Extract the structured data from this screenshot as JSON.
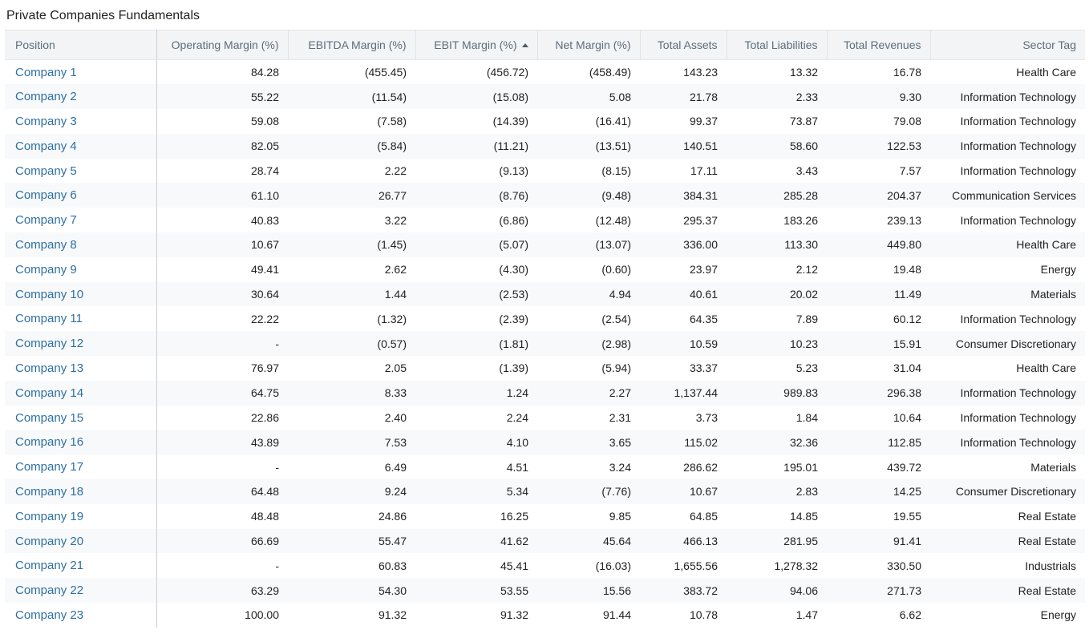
{
  "title": "Private Companies Fundamentals",
  "columns": {
    "position": "Position",
    "operating_margin": "Operating Margin (%)",
    "ebitda_margin": "EBITDA Margin (%)",
    "ebit_margin": "EBIT Margin (%)",
    "net_margin": "Net Margin (%)",
    "total_assets": "Total Assets",
    "total_liabilities": "Total Liabilities",
    "total_revenues": "Total Revenues",
    "sector_tag": "Sector Tag"
  },
  "sort": {
    "column": "ebit_margin",
    "direction": "ascending",
    "icon": "sort-ascending-icon"
  },
  "rows": [
    {
      "position": "Company 1",
      "operating_margin": "84.28",
      "ebitda_margin": "(455.45)",
      "ebit_margin": "(456.72)",
      "net_margin": "(458.49)",
      "total_assets": "143.23",
      "total_liabilities": "13.32",
      "total_revenues": "16.78",
      "sector_tag": "Health Care"
    },
    {
      "position": "Company 2",
      "operating_margin": "55.22",
      "ebitda_margin": "(11.54)",
      "ebit_margin": "(15.08)",
      "net_margin": "5.08",
      "total_assets": "21.78",
      "total_liabilities": "2.33",
      "total_revenues": "9.30",
      "sector_tag": "Information Technology"
    },
    {
      "position": "Company 3",
      "operating_margin": "59.08",
      "ebitda_margin": "(7.58)",
      "ebit_margin": "(14.39)",
      "net_margin": "(16.41)",
      "total_assets": "99.37",
      "total_liabilities": "73.87",
      "total_revenues": "79.08",
      "sector_tag": "Information Technology"
    },
    {
      "position": "Company 4",
      "operating_margin": "82.05",
      "ebitda_margin": "(5.84)",
      "ebit_margin": "(11.21)",
      "net_margin": "(13.51)",
      "total_assets": "140.51",
      "total_liabilities": "58.60",
      "total_revenues": "122.53",
      "sector_tag": "Information Technology"
    },
    {
      "position": "Company 5",
      "operating_margin": "28.74",
      "ebitda_margin": "2.22",
      "ebit_margin": "(9.13)",
      "net_margin": "(8.15)",
      "total_assets": "17.11",
      "total_liabilities": "3.43",
      "total_revenues": "7.57",
      "sector_tag": "Information Technology"
    },
    {
      "position": "Company 6",
      "operating_margin": "61.10",
      "ebitda_margin": "26.77",
      "ebit_margin": "(8.76)",
      "net_margin": "(9.48)",
      "total_assets": "384.31",
      "total_liabilities": "285.28",
      "total_revenues": "204.37",
      "sector_tag": "Communication Services"
    },
    {
      "position": "Company 7",
      "operating_margin": "40.83",
      "ebitda_margin": "3.22",
      "ebit_margin": "(6.86)",
      "net_margin": "(12.48)",
      "total_assets": "295.37",
      "total_liabilities": "183.26",
      "total_revenues": "239.13",
      "sector_tag": "Information Technology"
    },
    {
      "position": "Company 8",
      "operating_margin": "10.67",
      "ebitda_margin": "(1.45)",
      "ebit_margin": "(5.07)",
      "net_margin": "(13.07)",
      "total_assets": "336.00",
      "total_liabilities": "113.30",
      "total_revenues": "449.80",
      "sector_tag": "Health Care"
    },
    {
      "position": "Company 9",
      "operating_margin": "49.41",
      "ebitda_margin": "2.62",
      "ebit_margin": "(4.30)",
      "net_margin": "(0.60)",
      "total_assets": "23.97",
      "total_liabilities": "2.12",
      "total_revenues": "19.48",
      "sector_tag": "Energy"
    },
    {
      "position": "Company 10",
      "operating_margin": "30.64",
      "ebitda_margin": "1.44",
      "ebit_margin": "(2.53)",
      "net_margin": "4.94",
      "total_assets": "40.61",
      "total_liabilities": "20.02",
      "total_revenues": "11.49",
      "sector_tag": "Materials"
    },
    {
      "position": "Company 11",
      "operating_margin": "22.22",
      "ebitda_margin": "(1.32)",
      "ebit_margin": "(2.39)",
      "net_margin": "(2.54)",
      "total_assets": "64.35",
      "total_liabilities": "7.89",
      "total_revenues": "60.12",
      "sector_tag": "Information Technology"
    },
    {
      "position": "Company 12",
      "operating_margin": "-",
      "ebitda_margin": "(0.57)",
      "ebit_margin": "(1.81)",
      "net_margin": "(2.98)",
      "total_assets": "10.59",
      "total_liabilities": "10.23",
      "total_revenues": "15.91",
      "sector_tag": "Consumer Discretionary"
    },
    {
      "position": "Company 13",
      "operating_margin": "76.97",
      "ebitda_margin": "2.05",
      "ebit_margin": "(1.39)",
      "net_margin": "(5.94)",
      "total_assets": "33.37",
      "total_liabilities": "5.23",
      "total_revenues": "31.04",
      "sector_tag": "Health Care"
    },
    {
      "position": "Company 14",
      "operating_margin": "64.75",
      "ebitda_margin": "8.33",
      "ebit_margin": "1.24",
      "net_margin": "2.27",
      "total_assets": "1,137.44",
      "total_liabilities": "989.83",
      "total_revenues": "296.38",
      "sector_tag": "Information Technology"
    },
    {
      "position": "Company 15",
      "operating_margin": "22.86",
      "ebitda_margin": "2.40",
      "ebit_margin": "2.24",
      "net_margin": "2.31",
      "total_assets": "3.73",
      "total_liabilities": "1.84",
      "total_revenues": "10.64",
      "sector_tag": "Information Technology"
    },
    {
      "position": "Company 16",
      "operating_margin": "43.89",
      "ebitda_margin": "7.53",
      "ebit_margin": "4.10",
      "net_margin": "3.65",
      "total_assets": "115.02",
      "total_liabilities": "32.36",
      "total_revenues": "112.85",
      "sector_tag": "Information Technology"
    },
    {
      "position": "Company 17",
      "operating_margin": "-",
      "ebitda_margin": "6.49",
      "ebit_margin": "4.51",
      "net_margin": "3.24",
      "total_assets": "286.62",
      "total_liabilities": "195.01",
      "total_revenues": "439.72",
      "sector_tag": "Materials"
    },
    {
      "position": "Company 18",
      "operating_margin": "64.48",
      "ebitda_margin": "9.24",
      "ebit_margin": "5.34",
      "net_margin": "(7.76)",
      "total_assets": "10.67",
      "total_liabilities": "2.83",
      "total_revenues": "14.25",
      "sector_tag": "Consumer Discretionary"
    },
    {
      "position": "Company 19",
      "operating_margin": "48.48",
      "ebitda_margin": "24.86",
      "ebit_margin": "16.25",
      "net_margin": "9.85",
      "total_assets": "64.85",
      "total_liabilities": "14.85",
      "total_revenues": "19.55",
      "sector_tag": "Real Estate"
    },
    {
      "position": "Company 20",
      "operating_margin": "66.69",
      "ebitda_margin": "55.47",
      "ebit_margin": "41.62",
      "net_margin": "45.64",
      "total_assets": "466.13",
      "total_liabilities": "281.95",
      "total_revenues": "91.41",
      "sector_tag": "Real Estate"
    },
    {
      "position": "Company 21",
      "operating_margin": "-",
      "ebitda_margin": "60.83",
      "ebit_margin": "45.41",
      "net_margin": "(16.03)",
      "total_assets": "1,655.56",
      "total_liabilities": "1,278.32",
      "total_revenues": "330.50",
      "sector_tag": "Industrials"
    },
    {
      "position": "Company 22",
      "operating_margin": "63.29",
      "ebitda_margin": "54.30",
      "ebit_margin": "53.55",
      "net_margin": "15.56",
      "total_assets": "383.72",
      "total_liabilities": "94.06",
      "total_revenues": "271.73",
      "sector_tag": "Real Estate"
    },
    {
      "position": "Company 23",
      "operating_margin": "100.00",
      "ebitda_margin": "91.32",
      "ebit_margin": "91.32",
      "net_margin": "91.44",
      "total_assets": "10.78",
      "total_liabilities": "1.47",
      "total_revenues": "6.62",
      "sector_tag": "Energy"
    }
  ]
}
